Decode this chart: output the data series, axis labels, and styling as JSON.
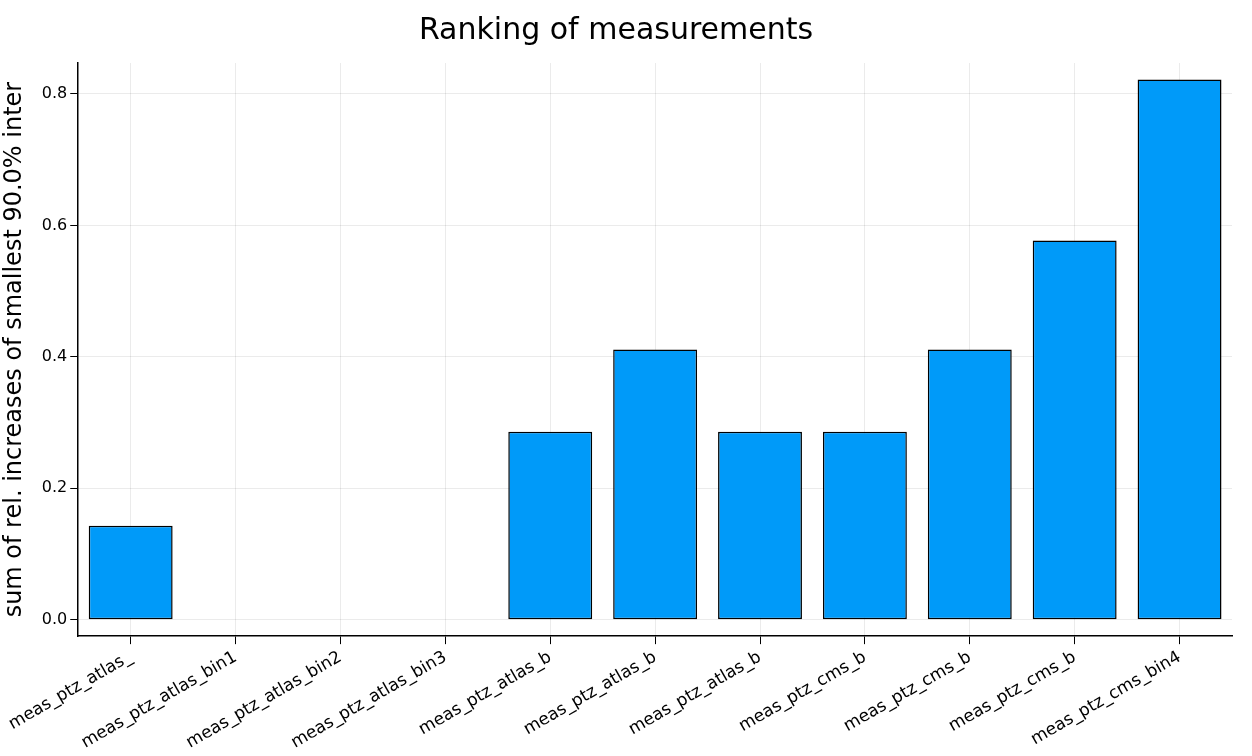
{
  "chart_data": {
    "type": "bar",
    "title": "Ranking of measurements",
    "ylabel": "sum of rel. increases of smallest 90.0% inter",
    "categories": [
      "meas_ptz_atlas_",
      "meas_ptz_atlas_bin1",
      "meas_ptz_atlas_bin2",
      "meas_ptz_atlas_bin3",
      "meas_ptz_atlas_b",
      "meas_ptz_atlas_b",
      "meas_ptz_atlas_b",
      "meas_ptz_cms_b",
      "meas_ptz_cms_b",
      "meas_ptz_cms_b",
      "meas_ptz_cms_bin4"
    ],
    "values": [
      0.143,
      0,
      0,
      0,
      0.286,
      0.411,
      0.286,
      0.286,
      0.411,
      0.577,
      0.822
    ],
    "color": "#009af9",
    "ylim": [
      -0.025,
      0.847
    ],
    "yticks": [
      {
        "value": 0,
        "label": "0.0"
      },
      {
        "value": 0.2,
        "label": "0.2"
      },
      {
        "value": 0.4,
        "label": "0.4"
      },
      {
        "value": 0.6,
        "label": "0.6"
      },
      {
        "value": 0.8,
        "label": "0.8"
      }
    ],
    "grid": true,
    "legend": false
  }
}
